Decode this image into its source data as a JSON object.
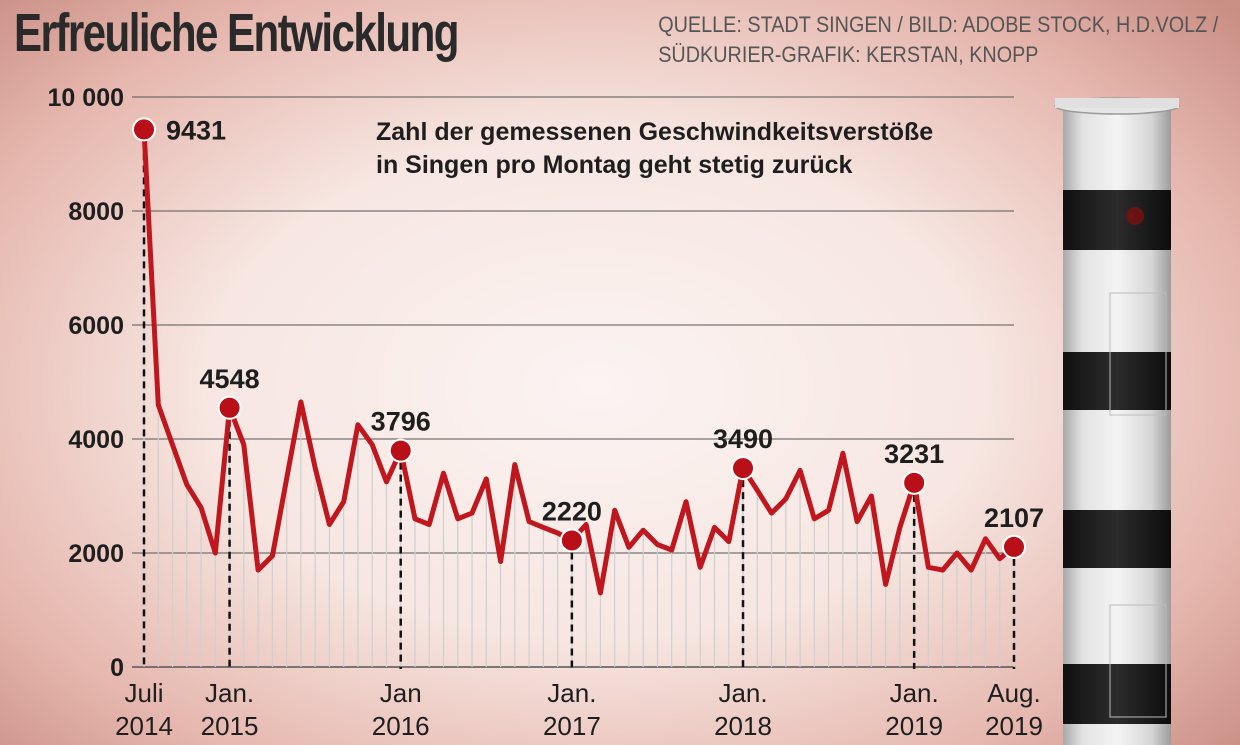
{
  "title": "Erfreuliche Entwicklung",
  "source_line1": "QUELLE: STADT SINGEN / BILD: ADOBE STOCK, H.D.VOLZ /",
  "source_line2": "SÜDKURIER-GRAFIK: KERSTAN, KNOPP",
  "subtitle_line1": "Zahl der gemessenen Geschwindkeitsverstöße",
  "subtitle_line2": "in Singen pro Montag geht stetig zurück",
  "colors": {
    "line": "#c0161d",
    "point": "#b80f18",
    "grid": "#555555",
    "drop": "#cfcfcf"
  },
  "icons": {
    "side_image": "speed-camera-pillar"
  },
  "chart_data": {
    "type": "line",
    "ylim": [
      0,
      10000
    ],
    "grid": true,
    "y_ticks": [
      {
        "value": 0,
        "label": "0"
      },
      {
        "value": 2000,
        "label": "2000"
      },
      {
        "value": 4000,
        "label": "4000"
      },
      {
        "value": 6000,
        "label": "6000"
      },
      {
        "value": 8000,
        "label": "8000"
      },
      {
        "value": 10000,
        "label": "10 000"
      }
    ],
    "x_ticks": [
      {
        "index": 0,
        "line1": "Juli",
        "line2": "2014"
      },
      {
        "index": 6,
        "line1": "Jan.",
        "line2": "2015"
      },
      {
        "index": 18,
        "line1": "Jan",
        "line2": "2016"
      },
      {
        "index": 30,
        "line1": "Jan.",
        "line2": "2017"
      },
      {
        "index": 42,
        "line1": "Jan.",
        "line2": "2018"
      },
      {
        "index": 54,
        "line1": "Jan.",
        "line2": "2019"
      },
      {
        "index": 61,
        "line1": "Aug.",
        "line2": "2019"
      }
    ],
    "values": [
      9431,
      4600,
      3900,
      3200,
      2800,
      2000,
      4548,
      3900,
      1700,
      1950,
      3300,
      4650,
      3500,
      2500,
      2900,
      4250,
      3900,
      3250,
      3796,
      2600,
      2500,
      3400,
      2600,
      2700,
      3300,
      1850,
      3550,
      2550,
      2450,
      2350,
      2220,
      2500,
      1300,
      2750,
      2100,
      2400,
      2150,
      2050,
      2900,
      1750,
      2450,
      2200,
      3490,
      3100,
      2700,
      2950,
      3450,
      2600,
      2750,
      3750,
      2550,
      3000,
      1450,
      2450,
      3231,
      1750,
      1700,
      2000,
      1700,
      2250,
      1900,
      2107
    ],
    "highlights": [
      {
        "index": 0,
        "value": 9431,
        "label": "9431"
      },
      {
        "index": 6,
        "value": 4548,
        "label": "4548"
      },
      {
        "index": 18,
        "value": 3796,
        "label": "3796"
      },
      {
        "index": 30,
        "value": 2220,
        "label": "2220"
      },
      {
        "index": 42,
        "value": 3490,
        "label": "3490"
      },
      {
        "index": 54,
        "value": 3231,
        "label": "3231"
      },
      {
        "index": 61,
        "value": 2107,
        "label": "2107"
      }
    ]
  }
}
